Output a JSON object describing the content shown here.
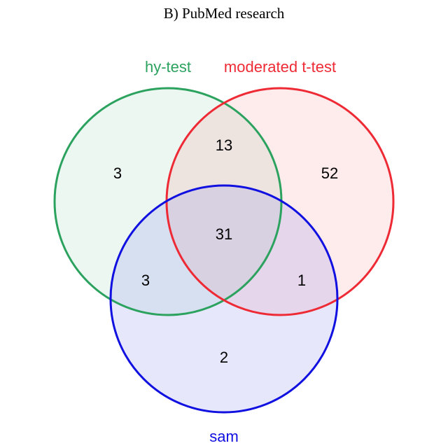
{
  "title": "B) PubMed research",
  "sets": [
    {
      "name": "hy-test",
      "stroke": "#2ca25f",
      "fill": "#2ca25f"
    },
    {
      "name": "moderated t-test",
      "stroke": "#ee2a35",
      "fill": "#f56f77"
    },
    {
      "name": "sam",
      "stroke": "#1010e0",
      "fill": "#7a7af0"
    }
  ],
  "regions": {
    "hy_test_only": "3",
    "moderated_only": "52",
    "sam_only": "2",
    "hy_test_moderated": "13",
    "hy_test_sam": "3",
    "moderated_sam": "1",
    "all_three": "31"
  }
}
